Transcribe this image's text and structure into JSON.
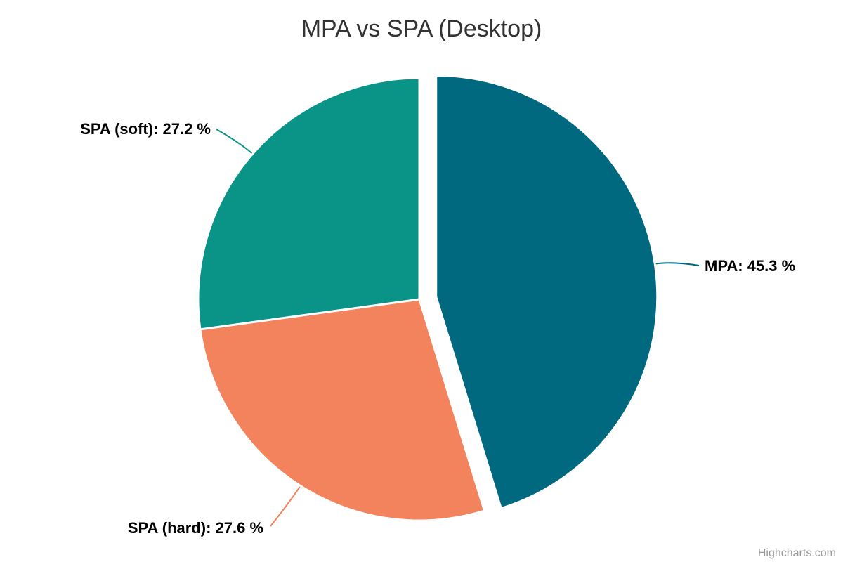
{
  "chart_data": {
    "type": "pie",
    "title": "MPA vs SPA (Desktop)",
    "legend_position": "none",
    "start_angle_deg": 0,
    "direction": "clockwise",
    "series": [
      {
        "name": "MPA",
        "percent": 45.3,
        "color": "#00687F",
        "sliced": true,
        "label": "MPA: 45.3 %"
      },
      {
        "name": "SPA (hard)",
        "percent": 27.6,
        "color": "#F2835C",
        "sliced": false,
        "label": "SPA (hard): 27.6 %"
      },
      {
        "name": "SPA (soft)",
        "percent": 27.2,
        "color": "#0A9488",
        "sliced": false,
        "label": "SPA (soft): 27.2 %"
      }
    ],
    "border_color": "#FFFFFF",
    "background_color": "#FFFFFF",
    "title_color": "#333333",
    "label_color": "#000000",
    "credit": "Highcharts.com",
    "credit_color": "#999999"
  }
}
